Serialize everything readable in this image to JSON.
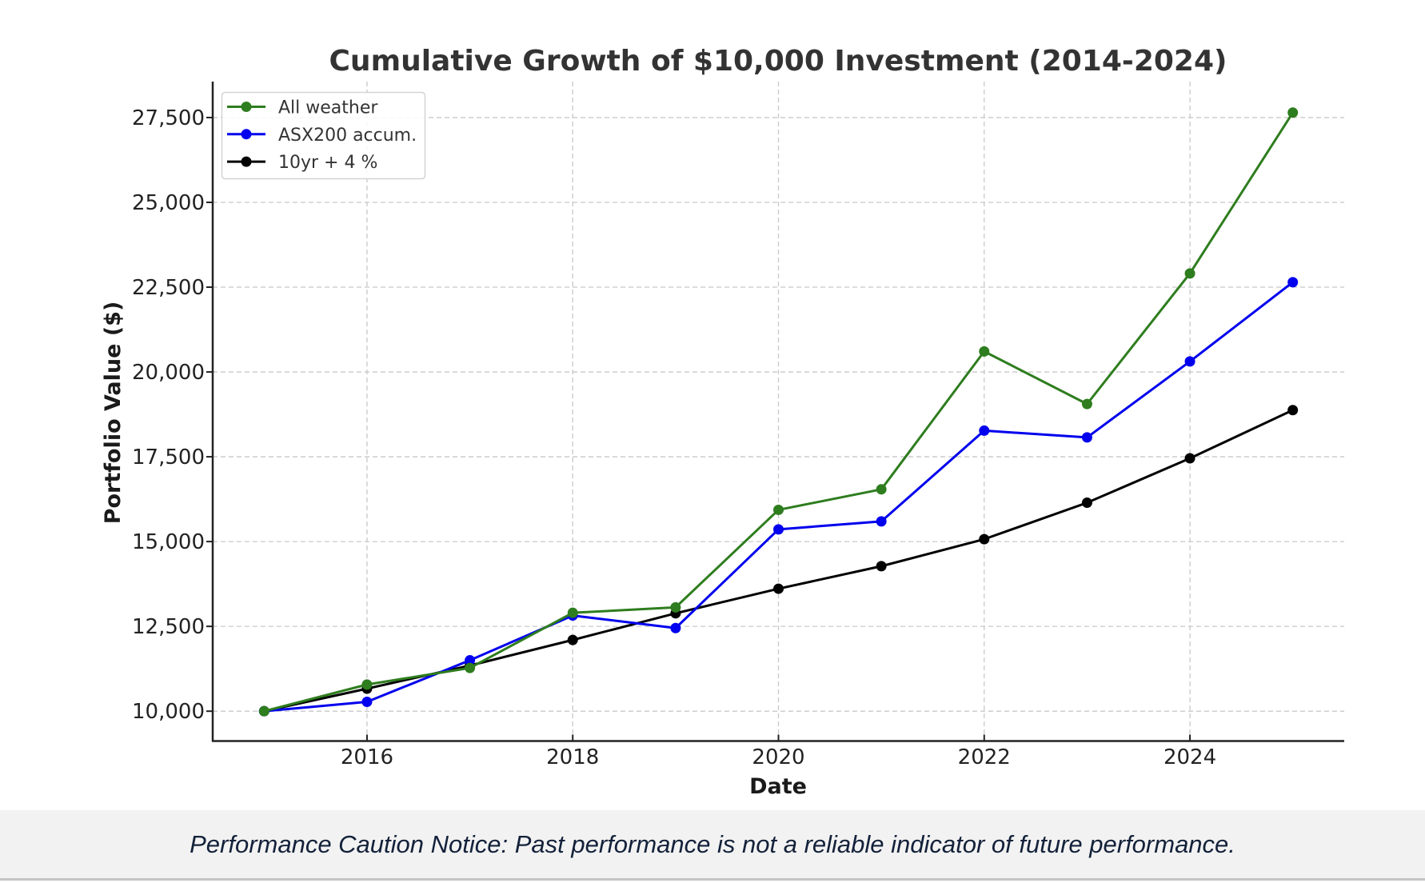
{
  "chart_data": {
    "type": "line",
    "title": "Cumulative Growth of $10,000 Investment (2014-2024)",
    "xlabel": "Date",
    "ylabel": "Portfolio Value ($)",
    "x": [
      2015,
      2016,
      2017,
      2018,
      2019,
      2020,
      2021,
      2022,
      2023,
      2024,
      2025
    ],
    "xticks": [
      2016,
      2018,
      2020,
      2022,
      2024
    ],
    "xtick_labels": [
      "2016",
      "2018",
      "2020",
      "2022",
      "2024"
    ],
    "yticks": [
      10000,
      12500,
      15000,
      17500,
      20000,
      22500,
      25000,
      27500
    ],
    "ytick_labels": [
      "10,000",
      "12,500",
      "15,000",
      "17,500",
      "20,000",
      "22,500",
      "25,000",
      "27,500"
    ],
    "xlim": [
      2014.5,
      2025.5
    ],
    "ylim": [
      9120,
      28560
    ],
    "grid": true,
    "legend_position": "top-left",
    "series": [
      {
        "name": "All weather",
        "color": "#2e7d1e",
        "values": [
          10000,
          10785,
          11275,
          12900,
          13060,
          15935,
          16540,
          20605,
          19055,
          22905,
          27645
        ]
      },
      {
        "name": "ASX200 accum.",
        "color": "#0000ee",
        "values": [
          10000,
          10275,
          11500,
          12820,
          12450,
          15360,
          15595,
          18270,
          18070,
          20310,
          22645
        ]
      },
      {
        "name": "10yr + 4 %",
        "color": "#000000",
        "values": [
          10000,
          10665,
          11345,
          12100,
          12885,
          13610,
          14275,
          15070,
          16145,
          17455,
          18875
        ]
      }
    ]
  },
  "footer": {
    "notice": "Performance Caution Notice: Past performance is not a reliable indicator of future performance."
  }
}
